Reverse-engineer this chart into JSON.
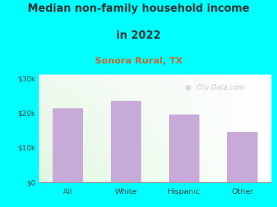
{
  "title_line1": "Median non-family household income",
  "title_line2": "in 2022",
  "subtitle": "Sonora Rural, TX",
  "categories": [
    "All",
    "White",
    "Hispanic",
    "Other"
  ],
  "values": [
    21200,
    23500,
    19500,
    14500
  ],
  "bar_color": "#c8aad8",
  "title_fontsize": 11,
  "subtitle_fontsize": 9.5,
  "subtitle_color": "#cc6633",
  "title_color": "#333333",
  "background_outer": "#00ffff",
  "ylim": [
    0,
    31000
  ],
  "yticks": [
    0,
    10000,
    20000,
    30000
  ],
  "ytick_labels": [
    "$0",
    "$10k",
    "$20k",
    "$30k"
  ],
  "axis_label_color": "#444444",
  "watermark": "City-Data.com"
}
